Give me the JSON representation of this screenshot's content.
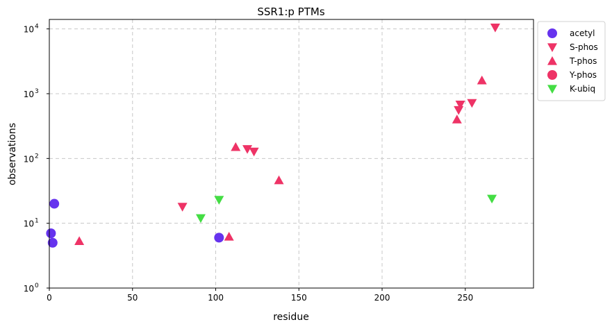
{
  "chart_data": {
    "type": "scatter",
    "title": "SSR1:p PTMs",
    "xlabel": "residue",
    "ylabel": "observations",
    "xlim": [
      0,
      291
    ],
    "ylim": [
      1,
      14000
    ],
    "yscale": "log",
    "grid": true,
    "legend_position": "outside-top-right",
    "x_ticks": [
      "0",
      "50",
      "100",
      "150",
      "200",
      "250"
    ],
    "x_tick_values": [
      0,
      50,
      100,
      150,
      200,
      250
    ],
    "y_tick_values": [
      1,
      10,
      100,
      1000,
      10000
    ],
    "y_tick_exponents": [
      "0",
      "1",
      "2",
      "3",
      "4"
    ],
    "y_tick_base": "10",
    "series": [
      {
        "name": "acetyl",
        "marker": "circle",
        "color": "#6633ee",
        "points": [
          [
            1,
            7
          ],
          [
            2,
            5
          ],
          [
            3,
            20
          ],
          [
            102,
            6
          ]
        ]
      },
      {
        "name": "S-phos",
        "marker": "triangle-down",
        "color": "#ee3366",
        "points": [
          [
            80,
            18
          ],
          [
            119,
            140
          ],
          [
            123,
            128
          ],
          [
            246,
            560
          ],
          [
            247,
            680
          ],
          [
            254,
            720
          ],
          [
            268,
            10500
          ]
        ]
      },
      {
        "name": "T-phos",
        "marker": "triangle-up",
        "color": "#ee3366",
        "points": [
          [
            18,
            5.3
          ],
          [
            108,
            6.2
          ],
          [
            112,
            150
          ],
          [
            138,
            46
          ],
          [
            245,
            400
          ],
          [
            260,
            1600
          ]
        ]
      },
      {
        "name": "Y-phos",
        "marker": "circle",
        "color": "#ee3366",
        "points": []
      },
      {
        "name": "K-ubiq",
        "marker": "triangle-down",
        "color": "#44dd44",
        "points": [
          [
            91,
            12
          ],
          [
            102,
            23
          ],
          [
            266,
            24
          ]
        ]
      }
    ]
  }
}
